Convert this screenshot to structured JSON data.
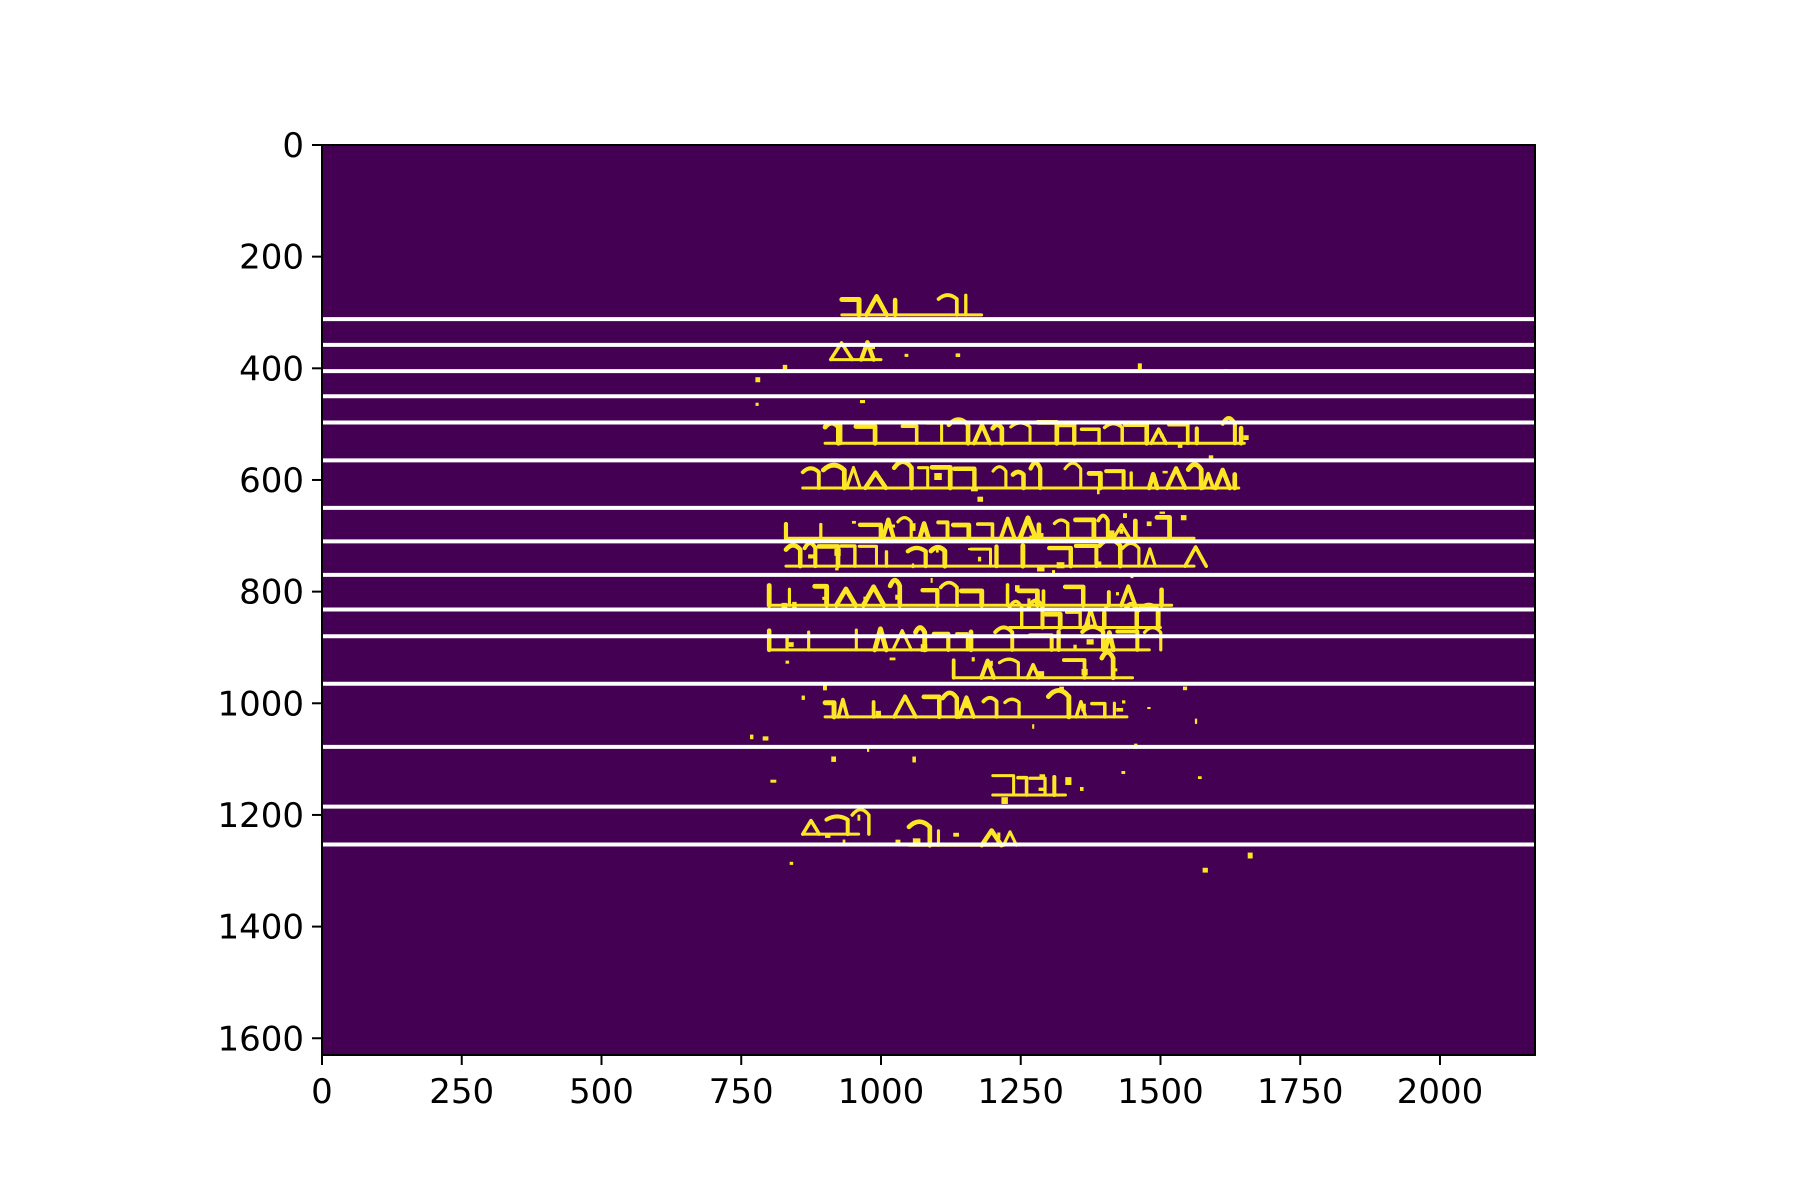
{
  "chart_data": {
    "type": "heatmap",
    "title": "",
    "xlabel": "",
    "ylabel": "",
    "xlim": [
      0,
      2170
    ],
    "ylim": [
      1630,
      0
    ],
    "y_inverted": true,
    "x_ticks": [
      0,
      250,
      500,
      750,
      1000,
      1250,
      1500,
      1750,
      2000
    ],
    "y_ticks": [
      0,
      200,
      400,
      600,
      800,
      1000,
      1200,
      1400,
      1600
    ],
    "x_tick_labels": [
      "0",
      "250",
      "500",
      "750",
      "1000",
      "1250",
      "1500",
      "1750",
      "2000"
    ],
    "y_tick_labels": [
      "0",
      "200",
      "400",
      "600",
      "800",
      "1000",
      "1200",
      "1400",
      "1600"
    ],
    "colors": {
      "background": "#440154",
      "foreground": "#fde725",
      "line_color": "#ffffff"
    },
    "horizontal_lines": [
      312,
      358,
      405,
      450,
      497,
      565,
      650,
      710,
      770,
      832,
      880,
      965,
      1078,
      1185,
      1253
    ],
    "ink_text_rows": [
      {
        "y": 290,
        "x_start": 930,
        "x_end": 1180
      },
      {
        "y": 370,
        "x_start": 910,
        "x_end": 1000
      },
      {
        "y": 520,
        "x_start": 900,
        "x_end": 1650
      },
      {
        "y": 600,
        "x_start": 860,
        "x_end": 1640
      },
      {
        "y": 690,
        "x_start": 830,
        "x_end": 1560
      },
      {
        "y": 740,
        "x_start": 830,
        "x_end": 1560
      },
      {
        "y": 810,
        "x_start": 800,
        "x_end": 1520
      },
      {
        "y": 850,
        "x_start": 1230,
        "x_end": 1500
      },
      {
        "y": 890,
        "x_start": 800,
        "x_end": 1480
      },
      {
        "y": 940,
        "x_start": 1130,
        "x_end": 1450
      },
      {
        "y": 1010,
        "x_start": 900,
        "x_end": 1440
      },
      {
        "y": 1150,
        "x_start": 1200,
        "x_end": 1330
      },
      {
        "y": 1220,
        "x_start": 860,
        "x_end": 960
      },
      {
        "y": 1240,
        "x_start": 1050,
        "x_end": 1220
      }
    ]
  }
}
